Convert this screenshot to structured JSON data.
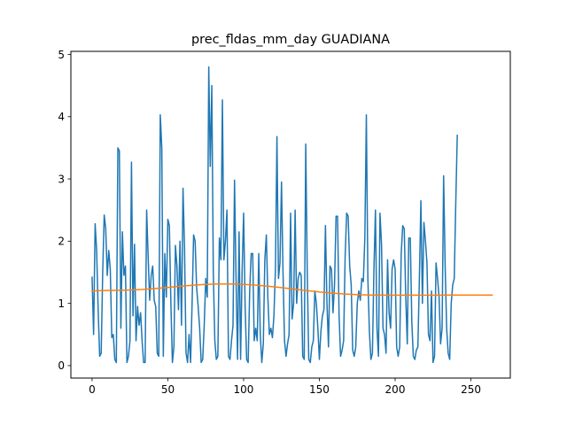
{
  "chart_data": {
    "type": "line",
    "title": "prec_fldas_mm_day GUADIANA",
    "xlabel": "",
    "ylabel": "",
    "xlim": [
      -14,
      276
    ],
    "ylim": [
      -0.2,
      5.05
    ],
    "grid": false,
    "x_ticks": [
      0,
      50,
      100,
      150,
      200,
      250
    ],
    "y_ticks": [
      0,
      1,
      2,
      3,
      4,
      5
    ],
    "series": [
      {
        "color": "#1f77b4",
        "values": [
          1.42,
          0.5,
          2.28,
          1.85,
          0.9,
          0.15,
          0.2,
          1.5,
          2.42,
          2.2,
          1.45,
          1.85,
          1.55,
          0.45,
          0.5,
          0.1,
          0.05,
          3.5,
          3.45,
          0.6,
          2.15,
          1.45,
          1.6,
          0.05,
          0.15,
          0.4,
          3.27,
          0.8,
          1.95,
          0.4,
          0.95,
          0.65,
          0.85,
          0.4,
          0.05,
          0.05,
          2.5,
          1.75,
          1.05,
          1.45,
          1.6,
          1.05,
          0.95,
          0.2,
          0.15,
          4.03,
          3.5,
          0.15,
          1.8,
          1.1,
          2.35,
          2.25,
          1.0,
          0.05,
          0.3,
          1.93,
          1.6,
          0.9,
          2.0,
          0.65,
          2.85,
          1.9,
          0.2,
          0.05,
          0.5,
          0.05,
          1.0,
          2.1,
          2.0,
          1.25,
          0.95,
          0.6,
          0.05,
          0.1,
          0.65,
          1.4,
          1.1,
          4.8,
          3.2,
          4.5,
          1.5,
          0.4,
          0.1,
          0.15,
          2.05,
          1.7,
          4.27,
          1.7,
          2.0,
          2.5,
          0.15,
          0.1,
          0.4,
          0.65,
          2.98,
          1.4,
          0.1,
          2.15,
          0.1,
          1.5,
          2.45,
          0.95,
          0.1,
          0.05,
          1.2,
          1.8,
          1.8,
          0.4,
          0.6,
          0.4,
          1.8,
          0.5,
          0.05,
          0.35,
          1.7,
          2.1,
          1.1,
          0.5,
          0.6,
          0.45,
          0.8,
          1.55,
          3.68,
          1.4,
          1.65,
          2.95,
          1.5,
          0.4,
          0.15,
          0.35,
          0.5,
          2.45,
          0.75,
          1.0,
          2.5,
          1.0,
          1.4,
          1.5,
          1.45,
          0.15,
          0.1,
          3.56,
          1.5,
          0.1,
          0.05,
          0.3,
          0.4,
          1.2,
          1.0,
          0.6,
          0.1,
          0.55,
          0.8,
          0.9,
          2.25,
          1.0,
          0.3,
          1.6,
          1.55,
          0.85,
          1.3,
          2.4,
          2.4,
          0.8,
          0.15,
          0.25,
          0.4,
          1.75,
          2.45,
          2.4,
          1.6,
          1.3,
          0.25,
          0.15,
          0.3,
          1.0,
          1.2,
          1.05,
          1.4,
          1.35,
          2.05,
          4.03,
          1.4,
          0.55,
          0.1,
          0.2,
          1.55,
          2.5,
          0.6,
          0.15,
          2.45,
          1.95,
          0.6,
          0.5,
          0.2,
          1.7,
          0.85,
          0.6,
          1.55,
          1.7,
          1.55,
          0.3,
          0.15,
          0.3,
          1.8,
          2.25,
          2.2,
          1.1,
          0.35,
          2.05,
          2.05,
          0.7,
          0.15,
          0.1,
          0.25,
          0.3,
          1.4,
          2.65,
          1.0,
          2.3,
          2.0,
          1.65,
          0.5,
          0.4,
          1.2,
          0.05,
          0.15,
          1.65,
          1.4,
          1.1,
          0.35,
          0.6,
          3.05,
          1.6,
          0.6,
          0.2,
          0.1,
          1.0,
          1.3,
          1.4,
          2.6,
          3.7
        ]
      },
      {
        "color": "#ff7f0e",
        "values": [
          1.2,
          1.201,
          1.202,
          1.203,
          1.204,
          1.205,
          1.205,
          1.206,
          1.207,
          1.207,
          1.208,
          1.208,
          1.208,
          1.209,
          1.209,
          1.21,
          1.21,
          1.21,
          1.211,
          1.211,
          1.212,
          1.212,
          1.213,
          1.214,
          1.214,
          1.215,
          1.216,
          1.217,
          1.218,
          1.219,
          1.22,
          1.222,
          1.223,
          1.224,
          1.226,
          1.227,
          1.229,
          1.23,
          1.232,
          1.234,
          1.236,
          1.238,
          1.24,
          1.242,
          1.244,
          1.246,
          1.248,
          1.25,
          1.253,
          1.255,
          1.257,
          1.259,
          1.262,
          1.264,
          1.266,
          1.268,
          1.271,
          1.273,
          1.275,
          1.277,
          1.279,
          1.281,
          1.283,
          1.285,
          1.287,
          1.289,
          1.291,
          1.293,
          1.294,
          1.296,
          1.298,
          1.299,
          1.301,
          1.302,
          1.303,
          1.305,
          1.306,
          1.307,
          1.308,
          1.309,
          1.309,
          1.31,
          1.311,
          1.311,
          1.312,
          1.312,
          1.312,
          1.312,
          1.312,
          1.312,
          1.312,
          1.312,
          1.312,
          1.311,
          1.311,
          1.31,
          1.309,
          1.308,
          1.308,
          1.306,
          1.305,
          1.304,
          1.303,
          1.301,
          1.3,
          1.298,
          1.297,
          1.295,
          1.293,
          1.291,
          1.289,
          1.287,
          1.285,
          1.283,
          1.281,
          1.278,
          1.276,
          1.274,
          1.271,
          1.269,
          1.266,
          1.264,
          1.261,
          1.258,
          1.256,
          1.253,
          1.25,
          1.247,
          1.245,
          1.242,
          1.239,
          1.236,
          1.233,
          1.23,
          1.228,
          1.225,
          1.222,
          1.219,
          1.216,
          1.213,
          1.211,
          1.208,
          1.205,
          1.202,
          1.2,
          1.197,
          1.194,
          1.192,
          1.189,
          1.187,
          1.184,
          1.182,
          1.179,
          1.177,
          1.175,
          1.173,
          1.171,
          1.168,
          1.166,
          1.164,
          1.162,
          1.161,
          1.159,
          1.157,
          1.155,
          1.154,
          1.152,
          1.151,
          1.149,
          1.148,
          1.146,
          1.145,
          1.144,
          1.143,
          1.142,
          1.141,
          1.14,
          1.139,
          1.138,
          1.137,
          1.137,
          1.136,
          1.135,
          1.135,
          1.134,
          1.134,
          1.134,
          1.133,
          1.133,
          1.133,
          1.133,
          1.133,
          1.132,
          1.132,
          1.132,
          1.132,
          1.132,
          1.132,
          1.132,
          1.132,
          1.132,
          1.132,
          1.132,
          1.132,
          1.132,
          1.132,
          1.132,
          1.132,
          1.132,
          1.132,
          1.132,
          1.132,
          1.132,
          1.132,
          1.132,
          1.132,
          1.132,
          1.132,
          1.132,
          1.132,
          1.132,
          1.132,
          1.132,
          1.132,
          1.132,
          1.132,
          1.132,
          1.132,
          1.132,
          1.132,
          1.132,
          1.133,
          1.133,
          1.133,
          1.133,
          1.133,
          1.133,
          1.133,
          1.133,
          1.133,
          1.133,
          1.133,
          1.133,
          1.133,
          1.133,
          1.133,
          1.133,
          1.133,
          1.133,
          1.133,
          1.133,
          1.133,
          1.133,
          1.133,
          1.133,
          1.133,
          1.133,
          1.133,
          1.133,
          1.133,
          1.133,
          1.133,
          1.133,
          1.133,
          1.133
        ]
      }
    ]
  }
}
